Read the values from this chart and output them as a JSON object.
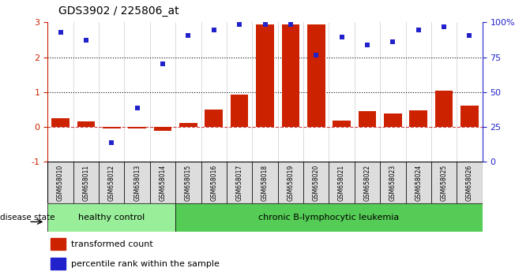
{
  "title": "GDS3902 / 225806_at",
  "samples": [
    "GSM658010",
    "GSM658011",
    "GSM658012",
    "GSM658013",
    "GSM658014",
    "GSM658015",
    "GSM658016",
    "GSM658017",
    "GSM658018",
    "GSM658019",
    "GSM658020",
    "GSM658021",
    "GSM658022",
    "GSM658023",
    "GSM658024",
    "GSM658025",
    "GSM658026"
  ],
  "bar_values": [
    0.25,
    0.15,
    -0.05,
    -0.04,
    -0.12,
    0.12,
    0.5,
    0.92,
    2.95,
    2.95,
    2.95,
    0.18,
    0.45,
    0.38,
    0.47,
    1.05,
    0.62
  ],
  "dot_y_left_scale": [
    2.72,
    2.48,
    -0.45,
    0.55,
    1.82,
    2.62,
    2.78,
    2.95,
    2.95,
    2.95,
    2.05,
    2.58,
    2.35,
    2.45,
    2.78,
    2.88,
    2.62
  ],
  "ylim_left": [
    -1,
    3
  ],
  "ylim_right": [
    0,
    100
  ],
  "bar_color": "#CC2200",
  "dot_color": "#2222CC",
  "zero_line_color": "#CC4444",
  "grid_color": "#CCCCCC",
  "dotted_line_color": "#111111",
  "healthy_n": 5,
  "healthy_label": "healthy control",
  "disease_label": "chronic B-lymphocytic leukemia",
  "healthy_color": "#99EE99",
  "disease_color": "#55CC55",
  "legend1": "transformed count",
  "legend2": "percentile rank within the sample",
  "disease_state_label": "disease state",
  "yticks_left": [
    -1,
    0,
    1,
    2,
    3
  ],
  "yticks_right": [
    0,
    25,
    50,
    75,
    100
  ],
  "right_tick_labels": [
    "0",
    "25",
    "50",
    "75",
    "100%"
  ],
  "xlabel_color": "#333333",
  "sample_box_color": "#DDDDDD",
  "spine_color": "#333333"
}
